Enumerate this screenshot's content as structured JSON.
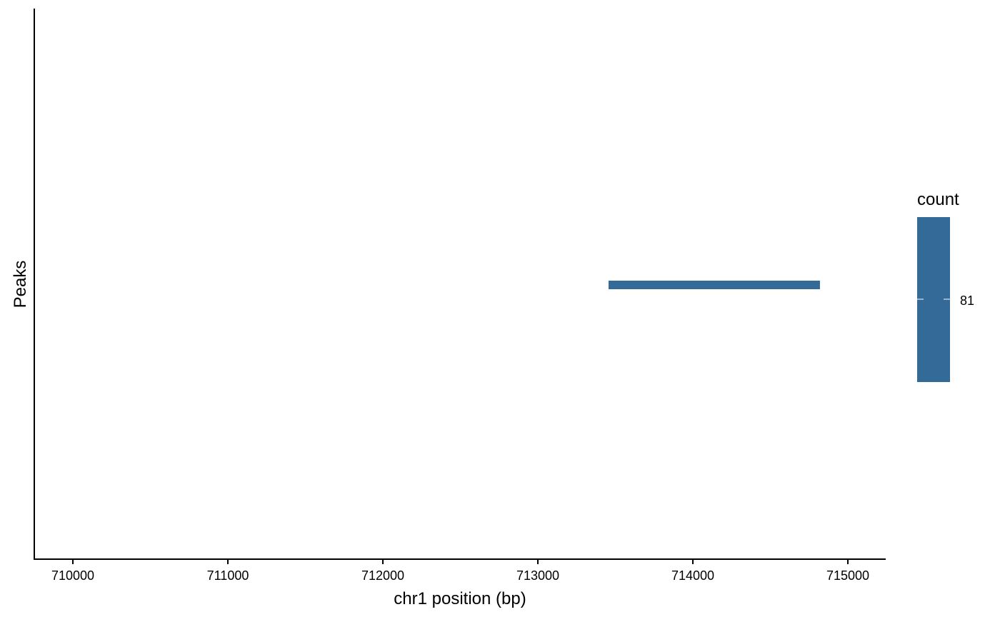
{
  "chart_data": {
    "type": "segment",
    "title": "",
    "xlabel": "chr1 position (bp)",
    "ylabel": "Peaks",
    "xlim": [
      709750,
      715250
    ],
    "xticks": [
      710000,
      711000,
      712000,
      713000,
      714000,
      715000
    ],
    "xtick_labels": [
      "710000",
      "711000",
      "712000",
      "713000",
      "714000",
      "715000"
    ],
    "grid": false,
    "segments": [
      {
        "start": 713456,
        "end": 714820,
        "count": 81
      }
    ],
    "legend": {
      "title": "count",
      "placement": "right",
      "ticks": [
        81
      ],
      "tick_labels": [
        "81"
      ]
    },
    "colors": {
      "segment": "#336A98",
      "axis": "#000000"
    }
  }
}
